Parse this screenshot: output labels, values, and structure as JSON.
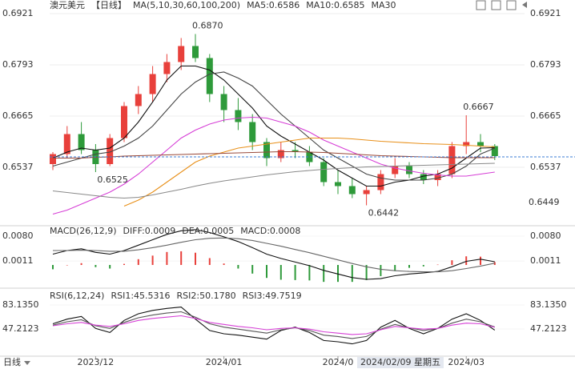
{
  "period_button": "日线",
  "crosshair_label": "2024/02/09 星期五",
  "chart_data": [
    {
      "type": "candlestick",
      "title": "澳元美元",
      "period": "【日线】",
      "legend_title": "MA(5,10,30,60,100,200)",
      "categories": [
        null,
        null,
        null,
        "2023/12",
        null,
        null,
        null,
        null,
        null,
        null,
        null,
        null,
        "2024/01",
        null,
        null,
        null,
        null,
        null,
        null,
        null,
        "2024/0",
        null,
        null,
        null,
        null,
        null,
        null,
        null,
        null,
        "2024/03",
        null,
        null
      ],
      "open": [
        0.6545,
        0.657,
        0.662,
        0.658,
        0.6545,
        0.661,
        0.669,
        0.672,
        0.677,
        0.68,
        0.684,
        0.681,
        0.672,
        0.668,
        0.665,
        0.66,
        0.656,
        0.658,
        0.6575,
        0.655,
        0.65,
        0.649,
        0.647,
        0.648,
        0.652,
        0.654,
        0.652,
        0.6505,
        0.652,
        0.659,
        0.66,
        0.659
      ],
      "high": [
        0.6575,
        0.664,
        0.665,
        0.6595,
        0.662,
        0.67,
        0.674,
        0.679,
        0.682,
        0.686,
        0.687,
        0.682,
        0.674,
        0.671,
        0.667,
        0.661,
        0.66,
        0.66,
        0.659,
        0.656,
        0.653,
        0.651,
        0.649,
        0.653,
        0.656,
        0.655,
        0.653,
        0.653,
        0.66,
        0.6667,
        0.662,
        0.6595
      ],
      "low": [
        0.653,
        0.656,
        0.657,
        0.6525,
        0.654,
        0.66,
        0.667,
        0.67,
        0.675,
        0.678,
        0.68,
        0.67,
        0.665,
        0.663,
        0.658,
        0.654,
        0.655,
        0.656,
        0.654,
        0.649,
        0.647,
        0.646,
        0.6442,
        0.647,
        0.651,
        0.651,
        0.6495,
        0.649,
        0.651,
        0.657,
        0.6575,
        0.6555
      ],
      "close": [
        0.657,
        0.662,
        0.658,
        0.6545,
        0.661,
        0.669,
        0.672,
        0.677,
        0.68,
        0.684,
        0.681,
        0.672,
        0.668,
        0.665,
        0.66,
        0.656,
        0.658,
        0.6575,
        0.655,
        0.65,
        0.649,
        0.647,
        0.648,
        0.652,
        0.654,
        0.652,
        0.6505,
        0.652,
        0.659,
        0.66,
        0.659,
        0.6565
      ],
      "high_labels": [
        null,
        null,
        null,
        null,
        null,
        null,
        null,
        null,
        null,
        null,
        "0.6870",
        null,
        null,
        null,
        null,
        null,
        null,
        null,
        null,
        null,
        null,
        null,
        null,
        null,
        null,
        null,
        null,
        null,
        null,
        "0.6667",
        null,
        null
      ],
      "low_labels": [
        null,
        null,
        null,
        "0.6525",
        null,
        null,
        null,
        null,
        null,
        null,
        null,
        null,
        null,
        null,
        null,
        null,
        null,
        null,
        null,
        null,
        null,
        null,
        "0.6442",
        null,
        null,
        null,
        null,
        null,
        null,
        null,
        null,
        null
      ],
      "up_color": "#e8403b",
      "down_color": "#2e9a3a",
      "high_label_color": "#e0403a",
      "low_label_color": "#3fa040",
      "series": [
        {
          "name": "MA5:0.6586",
          "color": "#111111",
          "values": [
            0.656,
            0.6575,
            0.6585,
            0.658,
            0.6585,
            0.661,
            0.665,
            0.67,
            0.6755,
            0.679,
            0.679,
            0.678,
            0.6755,
            0.672,
            0.6685,
            0.664,
            0.6615,
            0.6595,
            0.6575,
            0.6555,
            0.653,
            0.651,
            0.649,
            0.649,
            0.65,
            0.6505,
            0.6515,
            0.652,
            0.6535,
            0.656,
            0.6585,
            0.6586
          ]
        },
        {
          "name": "MA10:0.6585",
          "color": "#444444",
          "values": [
            0.654,
            0.655,
            0.656,
            0.657,
            0.6575,
            0.659,
            0.661,
            0.664,
            0.668,
            0.672,
            0.675,
            0.677,
            0.6775,
            0.676,
            0.674,
            0.6705,
            0.667,
            0.664,
            0.661,
            0.658,
            0.656,
            0.654,
            0.652,
            0.651,
            0.6505,
            0.6505,
            0.6505,
            0.651,
            0.652,
            0.654,
            0.657,
            0.6585
          ]
        },
        {
          "name": "MA30",
          "color": "#d63fd6",
          "values": [
            0.642,
            0.643,
            0.6445,
            0.646,
            0.6475,
            0.6495,
            0.652,
            0.655,
            0.658,
            0.661,
            0.663,
            0.6645,
            0.6655,
            0.666,
            0.6662,
            0.666,
            0.665,
            0.664,
            0.6625,
            0.6605,
            0.659,
            0.6575,
            0.656,
            0.6545,
            0.6535,
            0.6528,
            0.6522,
            0.6518,
            0.6515,
            0.6515,
            0.652,
            0.6525
          ]
        },
        {
          "color": "#e8901a",
          "values": [
            null,
            null,
            null,
            null,
            null,
            0.644,
            0.6455,
            0.6475,
            0.65,
            0.6525,
            0.655,
            0.6565,
            0.6575,
            0.6585,
            0.659,
            0.6595,
            0.66,
            0.6605,
            0.661,
            0.661,
            0.661,
            0.6608,
            0.6605,
            0.6602,
            0.66,
            0.6598,
            0.6596,
            0.6595,
            0.6594,
            0.6592,
            0.659,
            0.6588
          ]
        },
        {
          "color": "#9a4a3a",
          "values": [
            0.656,
            0.656,
            0.656,
            0.6562,
            0.6563,
            0.6565,
            0.6566,
            0.6567,
            0.6568,
            0.6569,
            0.657,
            0.6571,
            0.6572,
            0.6573,
            0.6574,
            0.6575,
            0.6576,
            0.6576,
            0.6575,
            0.6574,
            0.6572,
            0.657,
            0.6568,
            0.6566,
            0.6565,
            0.6564,
            0.6563,
            0.6562,
            0.6561,
            0.6561,
            0.6561,
            0.6561
          ]
        },
        {
          "color": "#8a8a8a",
          "values": [
            0.6478,
            0.6474,
            0.647,
            0.6466,
            0.6462,
            0.646,
            0.6462,
            0.6468,
            0.6475,
            0.6482,
            0.649,
            0.6497,
            0.6503,
            0.6508,
            0.6513,
            0.6518,
            0.6522,
            0.6526,
            0.6529,
            0.6532,
            0.6534,
            0.6536,
            0.6538,
            0.6539,
            0.654,
            0.6541,
            0.6542,
            0.6543,
            0.6544,
            0.6545,
            0.6546,
            0.6547
          ]
        }
      ],
      "price_line": 0.6563,
      "price_line_color": "#3a7bd5",
      "side_label": {
        "value": 0.6449,
        "label": "0.6449",
        "color": "#e8901a"
      },
      "ylim": [
        0.6391,
        0.6935
      ],
      "yticks": [
        0.6921,
        0.6793,
        0.6665,
        0.6537
      ],
      "grid": true
    },
    {
      "type": "macd",
      "title": "MACD(26,12,9)",
      "series": [
        {
          "name": "DIFF:0.0009",
          "color": "#111111",
          "values": [
            0.003,
            0.004,
            0.0045,
            0.0035,
            0.003,
            0.004,
            0.0055,
            0.007,
            0.0085,
            0.0095,
            0.0098,
            0.009,
            0.0078,
            0.0065,
            0.0048,
            0.003,
            0.0018,
            0.0008,
            -0.0002,
            -0.0015,
            -0.0025,
            -0.0035,
            -0.004,
            -0.0038,
            -0.003,
            -0.0025,
            -0.0022,
            -0.0018,
            -0.0005,
            0.001,
            0.0016,
            0.0009
          ]
        },
        {
          "name": "DEA:0.0005",
          "color": "#666666",
          "values": [
            0.004,
            0.004,
            0.0041,
            0.004,
            0.0038,
            0.0038,
            0.0042,
            0.0048,
            0.0055,
            0.0063,
            0.007,
            0.0074,
            0.0075,
            0.0073,
            0.0068,
            0.006,
            0.0052,
            0.0043,
            0.0034,
            0.0024,
            0.0014,
            0.0004,
            -0.0005,
            -0.0012,
            -0.0016,
            -0.0018,
            -0.0019,
            -0.0019,
            -0.0016,
            -0.001,
            -0.0003,
            0.0005
          ]
        }
      ],
      "histogram": {
        "name": "MACD:0.0008",
        "color": "#d63fd6",
        "up_color": "#e8403b",
        "down_color": "#2e9a3a",
        "values": [
          -0.0012,
          0.0,
          0.0005,
          -0.0006,
          -0.001,
          0.0003,
          0.0016,
          0.0026,
          0.0036,
          0.0038,
          0.0034,
          0.0019,
          0.0004,
          -0.001,
          -0.0024,
          -0.0036,
          -0.0041,
          -0.0042,
          -0.0043,
          -0.0047,
          -0.0047,
          -0.0047,
          -0.0042,
          -0.0031,
          -0.0017,
          -0.0008,
          -0.0004,
          0.0001,
          0.0013,
          0.0024,
          0.0023,
          0.0008
        ]
      },
      "ylim": [
        -0.006,
        0.0109
      ],
      "yticks": [
        {
          "value": 0.008,
          "label": "0.0080"
        },
        0.0011
      ]
    },
    {
      "type": "line",
      "title": "RSI(6,12,24)",
      "series": [
        {
          "name": "RSI1:45.5316",
          "color": "#111111",
          "values": [
            55,
            62,
            66,
            48,
            42,
            60,
            70,
            75,
            78,
            80,
            62,
            45,
            40,
            38,
            35,
            32,
            45,
            50,
            42,
            30,
            28,
            25,
            30,
            50,
            60,
            48,
            40,
            48,
            62,
            70,
            60,
            45.5316
          ]
        },
        {
          "name": "RSI2:50.1780",
          "color": "#555555",
          "values": [
            53,
            58,
            61,
            52,
            48,
            57,
            64,
            68,
            71,
            73,
            65,
            55,
            50,
            47,
            44,
            41,
            46,
            49,
            45,
            38,
            36,
            33,
            36,
            47,
            54,
            49,
            45,
            48,
            56,
            62,
            58,
            50.178
          ]
        },
        {
          "name": "RSI3:49.7519",
          "color": "#d63fd6",
          "values": [
            52,
            55,
            57,
            53,
            51,
            55,
            60,
            63,
            65,
            67,
            63,
            57,
            54,
            51,
            49,
            46,
            48,
            49,
            47,
            43,
            41,
            39,
            40,
            46,
            51,
            49,
            47,
            48,
            53,
            56,
            55,
            49.7519
          ]
        }
      ],
      "ylim": [
        6.5,
        105.9
      ],
      "yticks": [
        {
          "value": 83.135,
          "label": "83.1350"
        },
        47.2123
      ]
    }
  ]
}
